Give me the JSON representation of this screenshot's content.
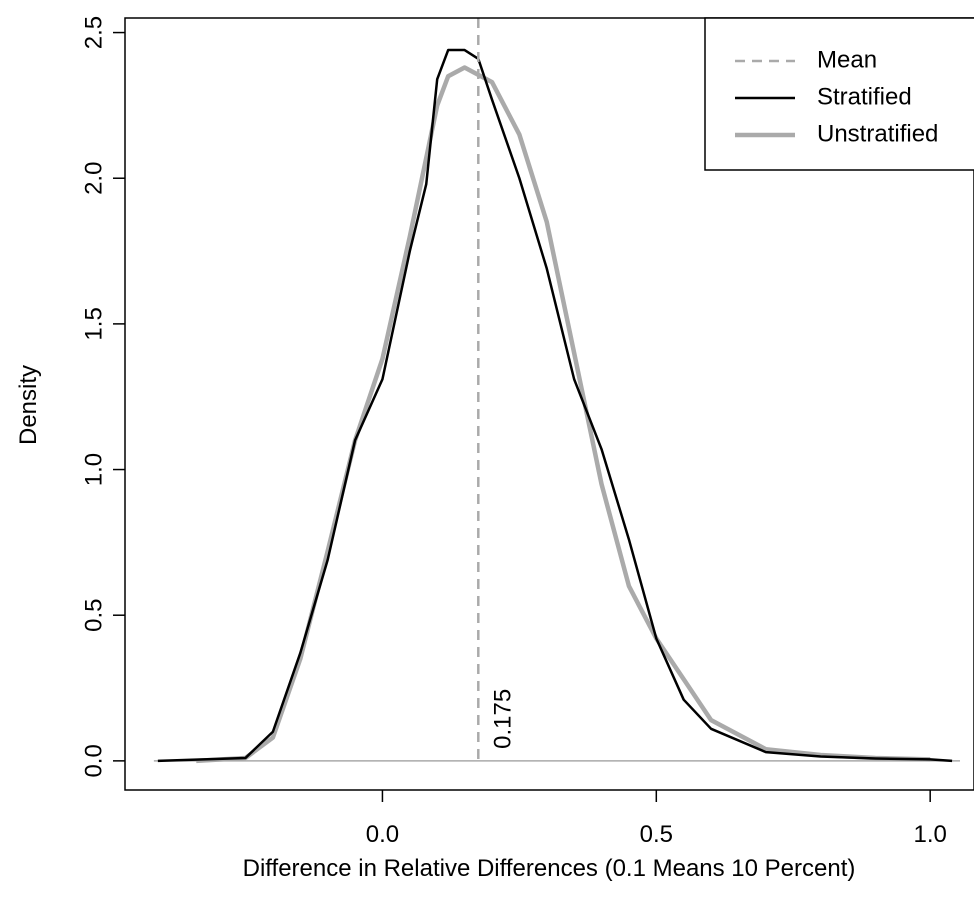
{
  "chart_data": {
    "type": "line",
    "xlabel": "Difference in Relative Differences (0.1 Means 10 Percent)",
    "ylabel": "Density",
    "xlim": [
      -0.47,
      1.08
    ],
    "ylim": [
      -0.1,
      2.55
    ],
    "xticks": [
      {
        "value": 0,
        "label": "0.0"
      },
      0.5,
      {
        "value": 1,
        "label": "1.0"
      }
    ],
    "yticks": [
      {
        "value": 0,
        "label": "0.0"
      },
      0.5,
      {
        "value": 1,
        "label": "1.0"
      },
      1.5,
      {
        "value": 2,
        "label": "2.0"
      },
      2.5
    ],
    "mean": 0.175,
    "mean_name": "Mean",
    "mean_color": "#aaaaaa",
    "legend": "topright",
    "series": [
      {
        "name": "Stratified",
        "color": "#000000",
        "x": [
          -0.41,
          -0.25,
          -0.2,
          -0.15,
          -0.1,
          -0.05,
          0.0,
          0.05,
          0.08,
          0.1,
          0.12,
          0.15,
          0.175,
          0.2,
          0.25,
          0.3,
          0.35,
          0.4,
          0.45,
          0.5,
          0.55,
          0.6,
          0.7,
          0.8,
          0.9,
          1.0,
          1.04
        ],
        "values": [
          0,
          0.01,
          0.1,
          0.37,
          0.69,
          1.1,
          1.31,
          1.75,
          1.98,
          2.34,
          2.44,
          2.44,
          2.41,
          2.27,
          2.0,
          1.69,
          1.31,
          1.07,
          0.76,
          0.42,
          0.21,
          0.11,
          0.03,
          0.015,
          0.008,
          0.005,
          0
        ]
      },
      {
        "name": "Unstratified",
        "color": "#aaaaaa",
        "x": [
          -0.34,
          -0.25,
          -0.2,
          -0.15,
          -0.1,
          -0.05,
          0.0,
          0.05,
          0.1,
          0.12,
          0.15,
          0.2,
          0.25,
          0.3,
          0.35,
          0.4,
          0.45,
          0.5,
          0.55,
          0.6,
          0.7,
          0.8,
          0.9,
          1.0
        ],
        "values": [
          0,
          0.01,
          0.08,
          0.35,
          0.72,
          1.1,
          1.38,
          1.8,
          2.25,
          2.35,
          2.38,
          2.33,
          2.15,
          1.85,
          1.4,
          0.95,
          0.6,
          0.42,
          0.28,
          0.14,
          0.04,
          0.02,
          0.01,
          0.005
        ]
      }
    ]
  }
}
